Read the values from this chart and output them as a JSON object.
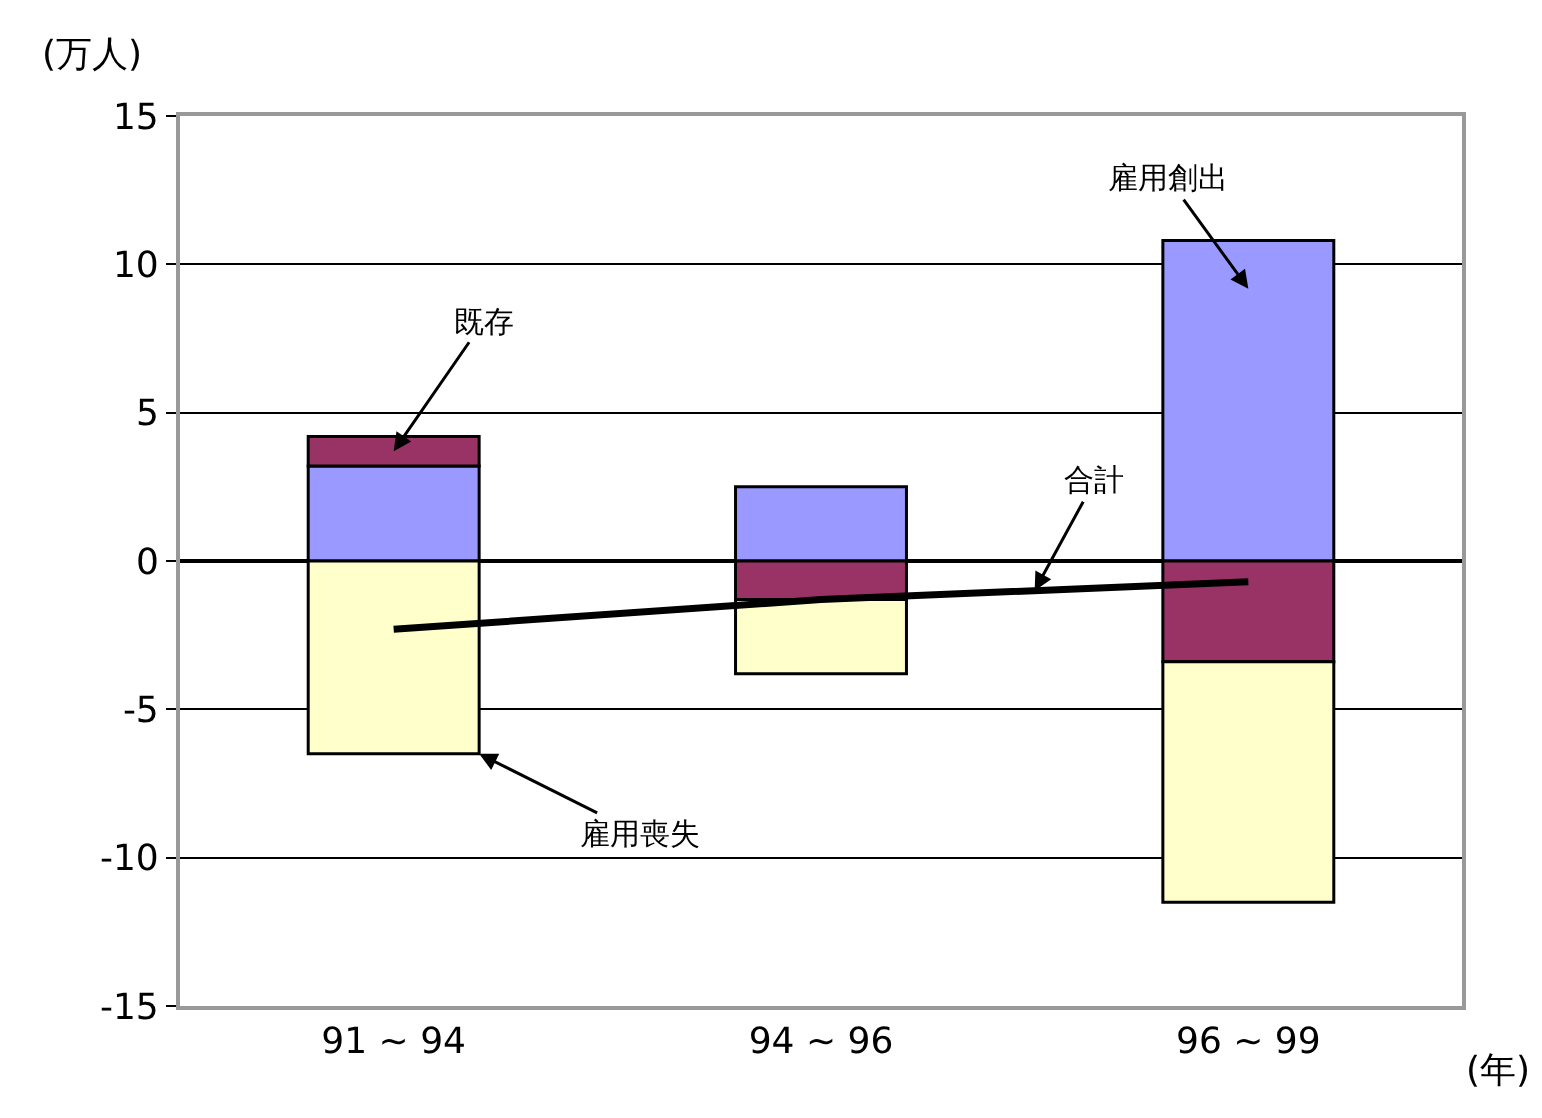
{
  "chart_data": {
    "type": "bar",
    "stacked": true,
    "ylabel": "(万人)",
    "xlabel": "(年)",
    "categories": [
      "91 ~ 94",
      "94 ~ 96",
      "96 ~ 99"
    ],
    "series": [
      {
        "name": "雇用創出",
        "color": "#9999ff",
        "values": [
          3.2,
          2.5,
          10.8
        ]
      },
      {
        "name": "既存",
        "color": "#993366",
        "values": [
          1.0,
          -1.3,
          -3.4
        ]
      },
      {
        "name": "雇用喪失",
        "color": "#ffffcc",
        "values": [
          -6.5,
          -2.5,
          -8.1
        ]
      },
      {
        "name": "合計",
        "type": "line",
        "color": "#000000",
        "values": [
          -2.3,
          -1.3,
          -0.7
        ]
      }
    ],
    "ylim": [
      -15,
      15
    ],
    "yticks": [
      -15,
      -10,
      -5,
      0,
      5,
      10,
      15
    ],
    "grid": "y",
    "legend": false
  }
}
